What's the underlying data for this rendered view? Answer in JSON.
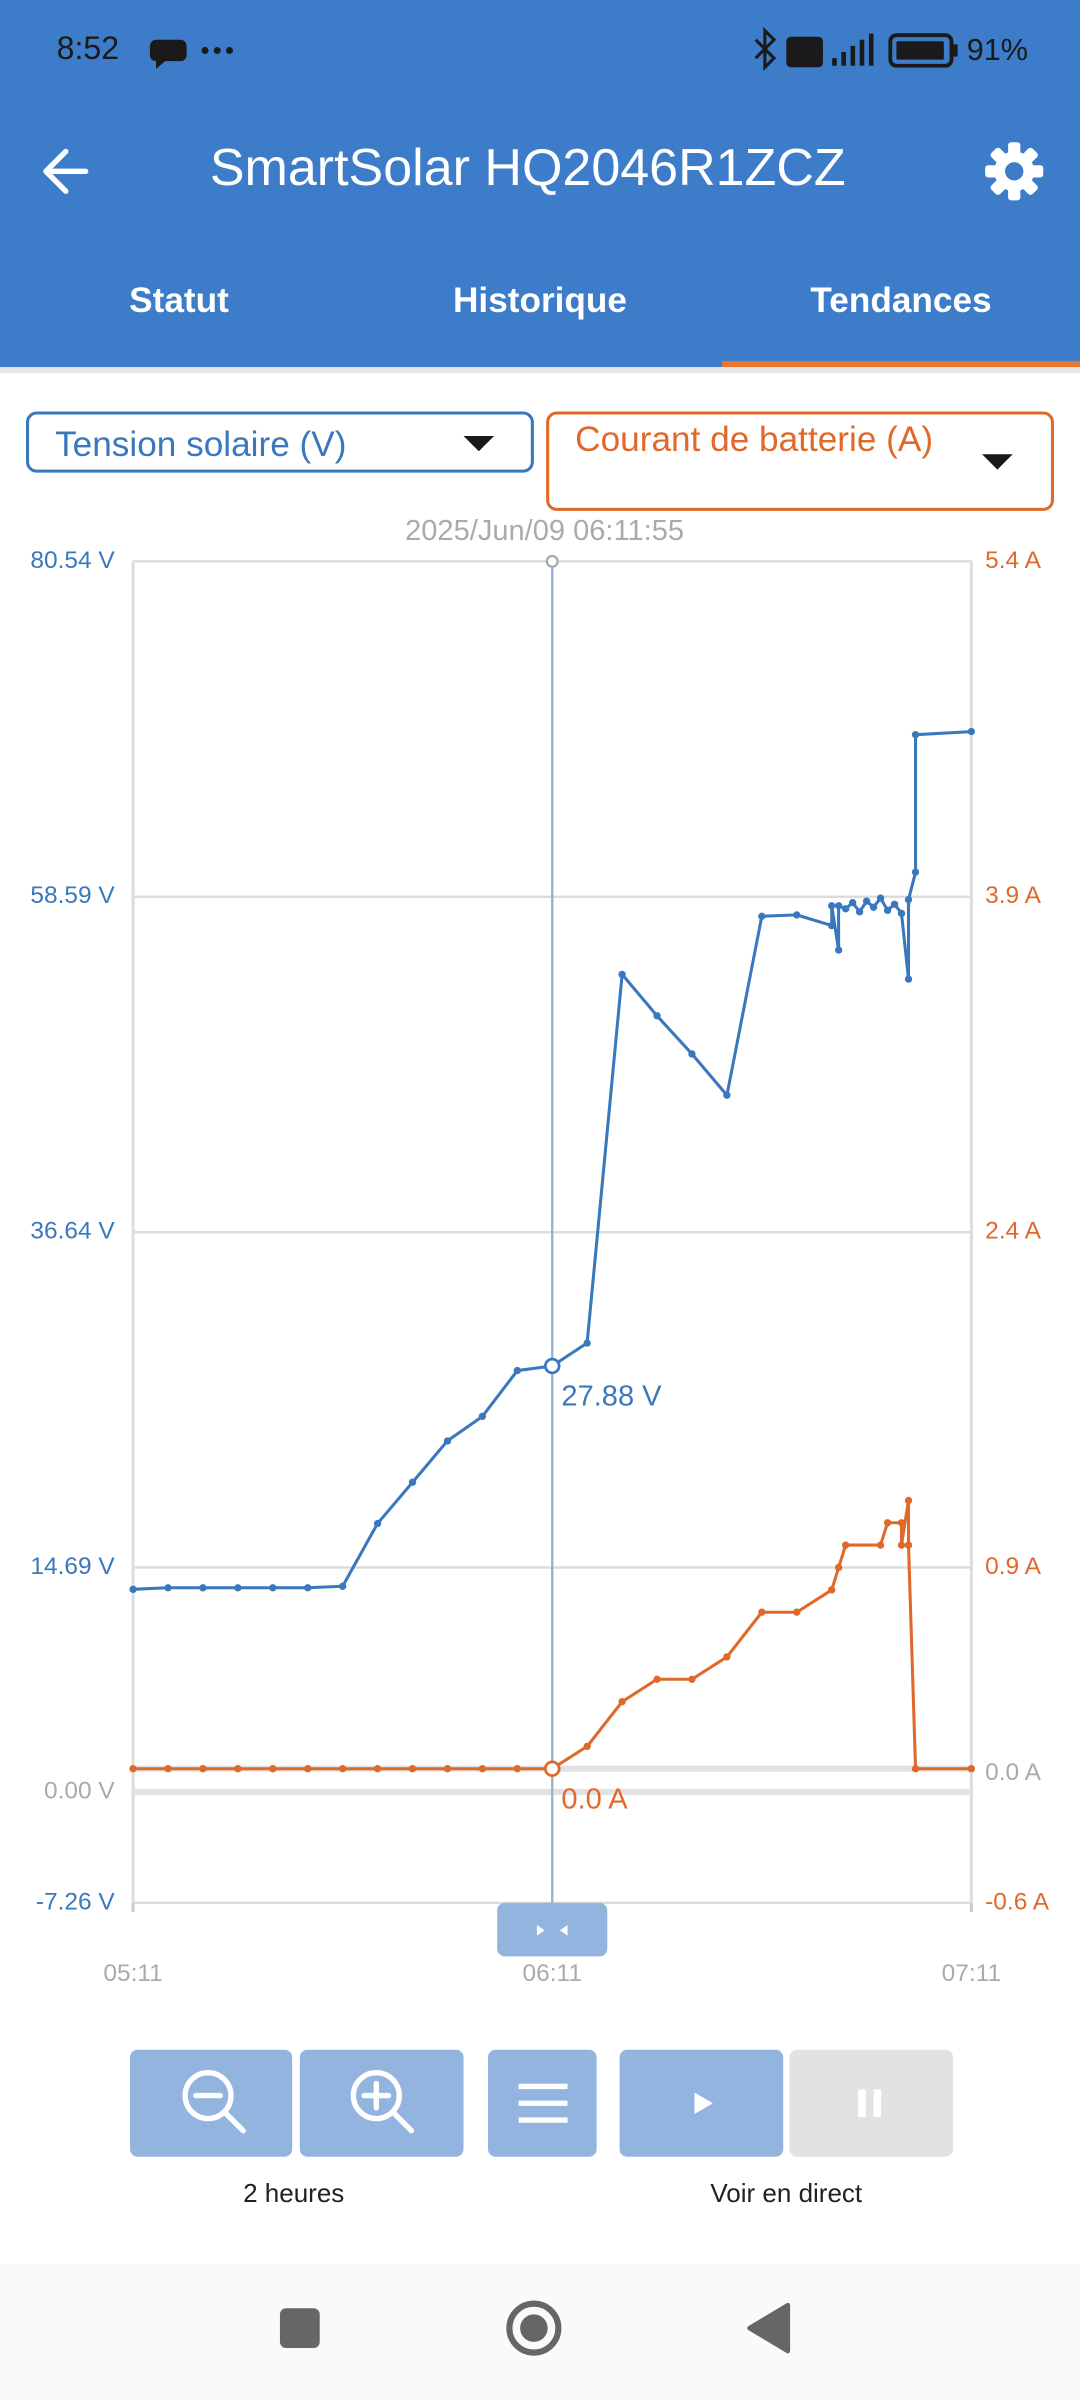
{
  "status_bar": {
    "time": "8:52",
    "battery": "91%"
  },
  "app_bar": {
    "title": "SmartSolar HQ2046R1ZCZ"
  },
  "tabs": {
    "items": [
      "Statut",
      "Historique",
      "Tendances"
    ],
    "selected": 2
  },
  "controls": {
    "zoom_label": "2 heures",
    "live_label": "Voir en direct"
  },
  "chart_data": {
    "type": "line",
    "cursor_label": "2025/Jun/09 06:11:55",
    "annotations": [
      "27.88 V",
      "0.0 A"
    ],
    "xlim": [
      "05:11",
      "07:11"
    ],
    "xticks": [
      "05:11",
      "06:11",
      "07:11"
    ],
    "ylim": [
      -7.26,
      80.54
    ],
    "yticks": [
      {
        "value": -7.26,
        "label": "-7.26 V"
      },
      {
        "value": 0,
        "label": "0.00 V"
      },
      {
        "value": 14.69,
        "label": "14.69 V"
      },
      {
        "value": 36.64,
        "label": "36.64 V"
      },
      {
        "value": 58.59,
        "label": "58.59 V"
      },
      {
        "value": 80.54,
        "label": "80.54 V"
      }
    ],
    "y2lim": [
      -0.6,
      5.4
    ],
    "y2ticks": [
      {
        "value": -0.6,
        "label": "-0.6 A"
      },
      {
        "value": 0,
        "label": "0.0 A"
      },
      {
        "value": 0.9,
        "label": "0.9 A"
      },
      {
        "value": 2.4,
        "label": "2.4 A"
      },
      {
        "value": 3.9,
        "label": "3.9 A"
      },
      {
        "value": 5.4,
        "label": "5.4 A"
      }
    ],
    "grid": true,
    "series": [
      {
        "name": "Tension solaire (V)",
        "color": "#3a78bd",
        "axis": "y",
        "x": [
          "05:11",
          "05:16",
          "05:21",
          "05:26",
          "05:31",
          "05:36",
          "05:41",
          "05:46",
          "05:51",
          "05:56",
          "06:01",
          "06:06",
          "06:11",
          "06:16",
          "06:21",
          "06:26",
          "06:31",
          "06:36",
          "06:41",
          "06:46",
          "06:51",
          "06:51",
          "06:52",
          "06:52",
          "06:53",
          "06:54",
          "06:55",
          "06:56",
          "06:57",
          "06:58",
          "06:59",
          "07:00",
          "07:01",
          "07:02",
          "07:02",
          "07:03",
          "07:03",
          "07:11"
        ],
        "values": [
          13.26,
          13.36,
          13.36,
          13.36,
          13.36,
          13.36,
          13.46,
          17.57,
          20.27,
          22.97,
          24.58,
          27.58,
          27.88,
          29.38,
          53.51,
          50.8,
          48.3,
          45.6,
          57.31,
          57.4,
          56.7,
          58.0,
          55.1,
          58.0,
          57.8,
          58.2,
          57.6,
          58.3,
          57.9,
          58.5,
          57.7,
          58.1,
          57.5,
          53.2,
          58.4,
          60.2,
          69.2,
          69.4
        ]
      },
      {
        "name": "Courant de batterie (A)",
        "color": "#e0692a",
        "axis": "y2",
        "x": [
          "05:11",
          "05:16",
          "05:21",
          "05:26",
          "05:31",
          "05:36",
          "05:41",
          "05:46",
          "05:51",
          "05:56",
          "06:01",
          "06:06",
          "06:11",
          "06:16",
          "06:21",
          "06:26",
          "06:31",
          "06:36",
          "06:41",
          "06:46",
          "06:51",
          "06:52",
          "06:53",
          "06:58",
          "06:59",
          "07:01",
          "07:01",
          "07:02",
          "07:02",
          "07:03",
          "07:11"
        ],
        "values": [
          0,
          0,
          0,
          0,
          0,
          0,
          0,
          0,
          0,
          0,
          0,
          0,
          0,
          0.1,
          0.3,
          0.4,
          0.4,
          0.5,
          0.7,
          0.7,
          0.8,
          0.9,
          1.0,
          1.0,
          1.1,
          1.1,
          1.0,
          1.2,
          1.0,
          0.0,
          0.0
        ]
      }
    ]
  }
}
